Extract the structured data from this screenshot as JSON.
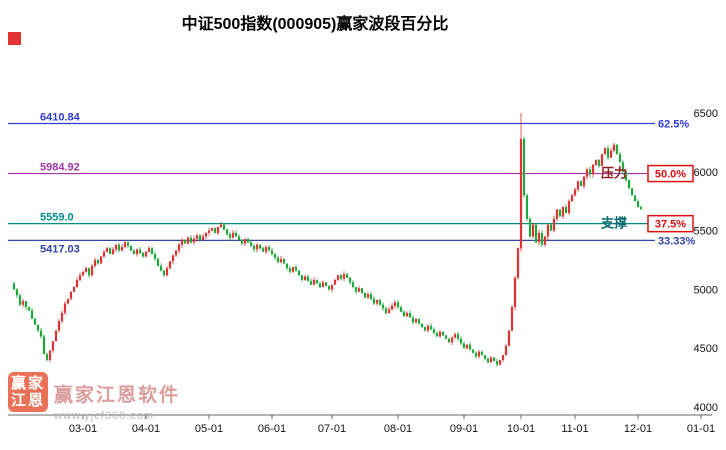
{
  "header": {
    "title": "中证500指数(000905)赢家波段百分比"
  },
  "watermark": {
    "logo_text": "赢家江恩",
    "brand": "赢家江恩软件",
    "url": "www.yjcf360.com"
  },
  "chart_data": {
    "type": "candlestick",
    "title": "中证500指数(000905)赢家波段百分比",
    "xlabel": "",
    "ylabel": "",
    "grid": false,
    "legend_position": "none",
    "y_axis": {
      "side": "right",
      "ticks": [
        6500,
        6000,
        5500,
        5000,
        4500,
        4000
      ],
      "ylim": [
        3930,
        6950
      ]
    },
    "x_axis": {
      "labels": [
        "03-01",
        "04-01",
        "05-01",
        "06-01",
        "07-01",
        "08-01",
        "09-01",
        "10-01",
        "11-01",
        "12-01",
        "01-01"
      ],
      "label_indices": [
        23,
        44,
        65,
        86,
        106,
        128,
        150,
        169,
        187,
        208,
        229
      ]
    },
    "levels": [
      {
        "price": 6410.84,
        "price_label": "6410.84",
        "pct_label": "62.5%",
        "color": "#2e3bd6",
        "pct_color": "#2e3bd6",
        "boxed": false,
        "label_below": false
      },
      {
        "price": 5984.92,
        "price_label": "5984.92",
        "pct_label": "50.0%",
        "color": "#a433a4",
        "pct_color": "#dd1111",
        "boxed": true,
        "label_below": false,
        "side_label": "压力",
        "side_label_color": "#8b2020"
      },
      {
        "price": 5559.0,
        "price_label": "5559.0",
        "pct_label": "37.5%",
        "color": "#008b8b",
        "pct_color": "#dd1111",
        "boxed": true,
        "label_below": false,
        "side_label": "支撑",
        "side_label_color": "#0d6b6b"
      },
      {
        "price": 5417.03,
        "price_label": "5417.03",
        "pct_label": "33.33%",
        "color": "#3344aa",
        "pct_color": "#3344aa",
        "boxed": false,
        "label_below": true
      }
    ],
    "candles": {
      "up_color": "#e03333",
      "down_color": "#1fa83c",
      "first_open": 5050,
      "spike": {
        "index": 169,
        "high": 6500
      },
      "closes": [
        5000,
        4950,
        4870,
        4900,
        4850,
        4820,
        4750,
        4700,
        4650,
        4600,
        4450,
        4400,
        4480,
        4560,
        4650,
        4730,
        4800,
        4880,
        4920,
        4980,
        5020,
        5080,
        5120,
        5150,
        5180,
        5120,
        5200,
        5250,
        5220,
        5280,
        5320,
        5350,
        5300,
        5340,
        5380,
        5330,
        5360,
        5400,
        5370,
        5330,
        5300,
        5340,
        5310,
        5280,
        5320,
        5350,
        5300,
        5260,
        5200,
        5160,
        5120,
        5180,
        5240,
        5290,
        5330,
        5380,
        5420,
        5390,
        5440,
        5400,
        5430,
        5460,
        5420,
        5450,
        5480,
        5500,
        5520,
        5480,
        5530,
        5550,
        5510,
        5470,
        5440,
        5480,
        5450,
        5420,
        5390,
        5430,
        5400,
        5370,
        5340,
        5380,
        5350,
        5320,
        5360,
        5330,
        5300,
        5270,
        5230,
        5260,
        5220,
        5180,
        5150,
        5190,
        5160,
        5120,
        5080,
        5110,
        5070,
        5040,
        5080,
        5050,
        5020,
        5060,
        5030,
        5000,
        5040,
        5080,
        5120,
        5090,
        5130,
        5100,
        5060,
        5020,
        4980,
        5010,
        4970,
        4930,
        4960,
        4920,
        4880,
        4910,
        4870,
        4840,
        4800,
        4830,
        4860,
        4890,
        4850,
        4810,
        4770,
        4800,
        4760,
        4720,
        4750,
        4710,
        4680,
        4650,
        4690,
        4660,
        4630,
        4600,
        4640,
        4610,
        4580,
        4550,
        4590,
        4620,
        4580,
        4540,
        4500,
        4530,
        4490,
        4460,
        4430,
        4470,
        4440,
        4410,
        4380,
        4420,
        4390,
        4360,
        4400,
        4440,
        4520,
        4650,
        4850,
        5100,
        5350,
        6280,
        5800,
        5600,
        5450,
        5550,
        5400,
        5480,
        5380,
        5450,
        5550,
        5500,
        5600,
        5680,
        5620,
        5700,
        5650,
        5750,
        5800,
        5850,
        5920,
        5880,
        5960,
        6020,
        5980,
        6060,
        6100,
        6050,
        6150,
        6200,
        6120,
        6180,
        6230,
        6150,
        6080,
        6000,
        5930,
        5860,
        5800,
        5750,
        5700,
        5680
      ]
    }
  }
}
